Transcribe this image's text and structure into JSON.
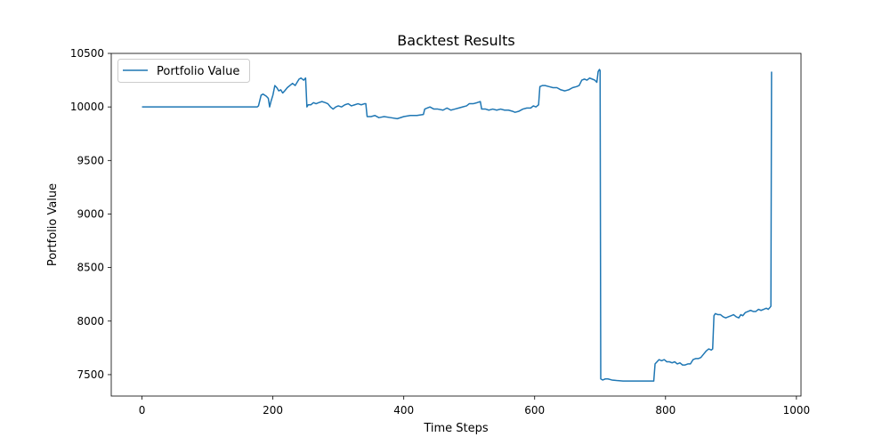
{
  "chart_data": {
    "type": "line",
    "title": "Backtest Results",
    "xlabel": "Time Steps",
    "ylabel": "Portfolio Value",
    "xlim": [
      -47,
      1007
    ],
    "ylim": [
      7300,
      10500
    ],
    "xticks": [
      0,
      200,
      400,
      600,
      800,
      1000
    ],
    "yticks": [
      7500,
      8000,
      8500,
      9000,
      9500,
      10000,
      10500
    ],
    "grid": false,
    "legend_position": "top-left",
    "series": [
      {
        "name": "Portfolio Value",
        "color": "#1f77b4",
        "points": [
          [
            0,
            10000
          ],
          [
            176,
            10000
          ],
          [
            178,
            10010
          ],
          [
            182,
            10110
          ],
          [
            185,
            10120
          ],
          [
            190,
            10100
          ],
          [
            193,
            10080
          ],
          [
            195,
            10000
          ],
          [
            197,
            10050
          ],
          [
            200,
            10110
          ],
          [
            203,
            10200
          ],
          [
            206,
            10180
          ],
          [
            209,
            10150
          ],
          [
            212,
            10160
          ],
          [
            215,
            10130
          ],
          [
            218,
            10150
          ],
          [
            222,
            10180
          ],
          [
            226,
            10200
          ],
          [
            230,
            10220
          ],
          [
            234,
            10200
          ],
          [
            237,
            10230
          ],
          [
            240,
            10260
          ],
          [
            243,
            10270
          ],
          [
            247,
            10250
          ],
          [
            250,
            10270
          ],
          [
            252,
            10000
          ],
          [
            254,
            10020
          ],
          [
            258,
            10020
          ],
          [
            262,
            10040
          ],
          [
            266,
            10030
          ],
          [
            270,
            10040
          ],
          [
            275,
            10050
          ],
          [
            280,
            10040
          ],
          [
            284,
            10030
          ],
          [
            288,
            10000
          ],
          [
            292,
            9980
          ],
          [
            296,
            10000
          ],
          [
            300,
            10010
          ],
          [
            305,
            10000
          ],
          [
            310,
            10020
          ],
          [
            315,
            10030
          ],
          [
            320,
            10010
          ],
          [
            325,
            10020
          ],
          [
            330,
            10030
          ],
          [
            335,
            10020
          ],
          [
            340,
            10030
          ],
          [
            342,
            10030
          ],
          [
            344,
            9910
          ],
          [
            350,
            9910
          ],
          [
            356,
            9920
          ],
          [
            362,
            9900
          ],
          [
            370,
            9910
          ],
          [
            380,
            9900
          ],
          [
            390,
            9890
          ],
          [
            400,
            9910
          ],
          [
            410,
            9920
          ],
          [
            420,
            9920
          ],
          [
            430,
            9930
          ],
          [
            432,
            9980
          ],
          [
            436,
            9990
          ],
          [
            440,
            10000
          ],
          [
            446,
            9980
          ],
          [
            452,
            9980
          ],
          [
            460,
            9970
          ],
          [
            466,
            9990
          ],
          [
            472,
            9970
          ],
          [
            478,
            9980
          ],
          [
            484,
            9990
          ],
          [
            490,
            10000
          ],
          [
            496,
            10010
          ],
          [
            500,
            10030
          ],
          [
            506,
            10030
          ],
          [
            512,
            10040
          ],
          [
            517,
            10050
          ],
          [
            519,
            9980
          ],
          [
            525,
            9980
          ],
          [
            530,
            9970
          ],
          [
            536,
            9980
          ],
          [
            542,
            9970
          ],
          [
            548,
            9980
          ],
          [
            554,
            9970
          ],
          [
            560,
            9970
          ],
          [
            566,
            9960
          ],
          [
            570,
            9950
          ],
          [
            576,
            9960
          ],
          [
            582,
            9980
          ],
          [
            588,
            9990
          ],
          [
            594,
            9990
          ],
          [
            598,
            10010
          ],
          [
            602,
            10000
          ],
          [
            606,
            10020
          ],
          [
            608,
            10190
          ],
          [
            612,
            10200
          ],
          [
            616,
            10200
          ],
          [
            622,
            10190
          ],
          [
            628,
            10180
          ],
          [
            634,
            10180
          ],
          [
            640,
            10160
          ],
          [
            646,
            10150
          ],
          [
            652,
            10160
          ],
          [
            658,
            10180
          ],
          [
            664,
            10190
          ],
          [
            668,
            10200
          ],
          [
            672,
            10250
          ],
          [
            676,
            10260
          ],
          [
            680,
            10250
          ],
          [
            684,
            10270
          ],
          [
            688,
            10260
          ],
          [
            692,
            10250
          ],
          [
            695,
            10230
          ],
          [
            697,
            10330
          ],
          [
            699,
            10350
          ],
          [
            700,
            10340
          ],
          [
            701,
            7460
          ],
          [
            704,
            7450
          ],
          [
            708,
            7460
          ],
          [
            712,
            7460
          ],
          [
            718,
            7450
          ],
          [
            725,
            7445
          ],
          [
            735,
            7440
          ],
          [
            745,
            7440
          ],
          [
            755,
            7440
          ],
          [
            765,
            7440
          ],
          [
            775,
            7440
          ],
          [
            780,
            7440
          ],
          [
            782,
            7440
          ],
          [
            784,
            7600
          ],
          [
            787,
            7620
          ],
          [
            790,
            7640
          ],
          [
            794,
            7630
          ],
          [
            798,
            7640
          ],
          [
            802,
            7620
          ],
          [
            806,
            7620
          ],
          [
            810,
            7610
          ],
          [
            814,
            7620
          ],
          [
            818,
            7600
          ],
          [
            822,
            7610
          ],
          [
            826,
            7590
          ],
          [
            830,
            7590
          ],
          [
            834,
            7600
          ],
          [
            838,
            7600
          ],
          [
            842,
            7640
          ],
          [
            846,
            7650
          ],
          [
            850,
            7650
          ],
          [
            854,
            7660
          ],
          [
            858,
            7690
          ],
          [
            862,
            7720
          ],
          [
            866,
            7740
          ],
          [
            870,
            7730
          ],
          [
            872,
            7740
          ],
          [
            874,
            8050
          ],
          [
            876,
            8070
          ],
          [
            880,
            8060
          ],
          [
            884,
            8060
          ],
          [
            888,
            8040
          ],
          [
            892,
            8030
          ],
          [
            896,
            8040
          ],
          [
            900,
            8050
          ],
          [
            904,
            8060
          ],
          [
            908,
            8040
          ],
          [
            912,
            8030
          ],
          [
            915,
            8060
          ],
          [
            918,
            8050
          ],
          [
            922,
            8080
          ],
          [
            926,
            8090
          ],
          [
            930,
            8100
          ],
          [
            934,
            8090
          ],
          [
            938,
            8090
          ],
          [
            942,
            8110
          ],
          [
            946,
            8100
          ],
          [
            950,
            8110
          ],
          [
            954,
            8120
          ],
          [
            957,
            8110
          ],
          [
            960,
            8130
          ],
          [
            961,
            8140
          ],
          [
            962,
            10330
          ]
        ]
      }
    ]
  }
}
